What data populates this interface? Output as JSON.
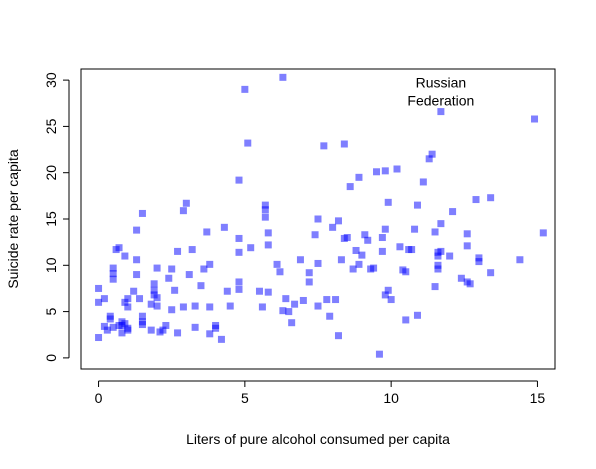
{
  "chart_data": {
    "type": "scatter",
    "title": "",
    "xlabel": "Liters of pure alcohol consumed per capita",
    "ylabel": "Suicide rate per capita",
    "xlim": [
      -0.6,
      15.6
    ],
    "ylim": [
      -1.2,
      31.2
    ],
    "xticks": [
      0,
      5,
      10,
      15
    ],
    "yticks": [
      0,
      5,
      10,
      15,
      20,
      25,
      30
    ],
    "grid": false,
    "marker_color": "#0000ff",
    "marker_opacity": 0.5,
    "annotation": {
      "lines": [
        "Russian",
        "Federation"
      ],
      "x": 11.7,
      "y": 26.6
    },
    "points": [
      [
        0.0,
        2.2
      ],
      [
        0.0,
        6.0
      ],
      [
        0.0,
        7.5
      ],
      [
        0.2,
        3.4
      ],
      [
        0.2,
        6.4
      ],
      [
        0.3,
        3.0
      ],
      [
        0.4,
        4.2
      ],
      [
        0.4,
        4.5
      ],
      [
        0.5,
        8.5
      ],
      [
        0.5,
        9.1
      ],
      [
        0.5,
        9.7
      ],
      [
        0.5,
        3.3
      ],
      [
        0.6,
        11.7
      ],
      [
        0.7,
        3.5
      ],
      [
        0.7,
        11.9
      ],
      [
        0.8,
        3.9
      ],
      [
        0.8,
        2.7
      ],
      [
        0.8,
        3.5
      ],
      [
        0.9,
        3.7
      ],
      [
        0.9,
        6.0
      ],
      [
        0.9,
        11.0
      ],
      [
        1.0,
        3.0
      ],
      [
        1.0,
        5.5
      ],
      [
        1.0,
        3.2
      ],
      [
        1.0,
        6.4
      ],
      [
        1.2,
        7.2
      ],
      [
        1.3,
        10.6
      ],
      [
        1.3,
        9.0
      ],
      [
        1.3,
        13.8
      ],
      [
        1.4,
        6.4
      ],
      [
        1.5,
        3.6
      ],
      [
        1.5,
        4.5
      ],
      [
        1.5,
        3.9
      ],
      [
        1.5,
        15.6
      ],
      [
        1.8,
        3.0
      ],
      [
        1.8,
        5.8
      ],
      [
        1.9,
        6.8
      ],
      [
        1.9,
        7.3
      ],
      [
        1.9,
        8.0
      ],
      [
        2.0,
        9.7
      ],
      [
        2.0,
        5.6
      ],
      [
        2.0,
        6.5
      ],
      [
        2.1,
        2.8
      ],
      [
        2.2,
        3.0
      ],
      [
        2.3,
        3.5
      ],
      [
        2.4,
        8.6
      ],
      [
        2.5,
        9.6
      ],
      [
        2.5,
        5.2
      ],
      [
        2.6,
        7.3
      ],
      [
        2.7,
        2.7
      ],
      [
        2.7,
        11.5
      ],
      [
        2.9,
        15.9
      ],
      [
        2.9,
        5.5
      ],
      [
        3.0,
        16.7
      ],
      [
        3.1,
        9.0
      ],
      [
        3.2,
        11.7
      ],
      [
        3.3,
        3.3
      ],
      [
        3.3,
        5.6
      ],
      [
        3.5,
        7.8
      ],
      [
        3.6,
        9.6
      ],
      [
        3.7,
        13.6
      ],
      [
        3.8,
        10.1
      ],
      [
        3.8,
        2.6
      ],
      [
        3.8,
        5.5
      ],
      [
        4.0,
        3.5
      ],
      [
        4.0,
        3.2
      ],
      [
        4.2,
        2.0
      ],
      [
        4.3,
        14.1
      ],
      [
        4.4,
        7.2
      ],
      [
        4.5,
        5.6
      ],
      [
        4.8,
        8.2
      ],
      [
        4.8,
        7.4
      ],
      [
        4.8,
        11.4
      ],
      [
        4.8,
        12.9
      ],
      [
        4.8,
        19.2
      ],
      [
        5.0,
        29.0
      ],
      [
        5.1,
        23.2
      ],
      [
        5.2,
        11.9
      ],
      [
        5.5,
        7.2
      ],
      [
        5.6,
        5.5
      ],
      [
        5.7,
        16.5
      ],
      [
        5.7,
        16.0
      ],
      [
        5.7,
        15.2
      ],
      [
        5.8,
        13.5
      ],
      [
        5.8,
        12.2
      ],
      [
        5.8,
        7.1
      ],
      [
        6.1,
        10.1
      ],
      [
        6.2,
        9.3
      ],
      [
        6.3,
        5.1
      ],
      [
        6.3,
        30.3
      ],
      [
        6.4,
        6.4
      ],
      [
        6.5,
        5.0
      ],
      [
        6.6,
        3.8
      ],
      [
        6.7,
        5.8
      ],
      [
        6.9,
        10.6
      ],
      [
        7.0,
        6.2
      ],
      [
        7.2,
        9.2
      ],
      [
        7.2,
        8.2
      ],
      [
        7.4,
        13.3
      ],
      [
        7.5,
        15.0
      ],
      [
        7.5,
        10.2
      ],
      [
        7.5,
        5.6
      ],
      [
        7.7,
        22.9
      ],
      [
        7.8,
        6.3
      ],
      [
        7.9,
        4.5
      ],
      [
        8.0,
        14.1
      ],
      [
        8.1,
        6.3
      ],
      [
        8.2,
        14.8
      ],
      [
        8.2,
        2.4
      ],
      [
        8.3,
        10.6
      ],
      [
        8.4,
        12.9
      ],
      [
        8.4,
        23.1
      ],
      [
        8.5,
        13.0
      ],
      [
        8.6,
        18.5
      ],
      [
        8.7,
        9.6
      ],
      [
        8.8,
        11.6
      ],
      [
        8.9,
        19.5
      ],
      [
        8.9,
        10.1
      ],
      [
        9.0,
        11.1
      ],
      [
        9.1,
        13.3
      ],
      [
        9.2,
        12.7
      ],
      [
        9.3,
        9.6
      ],
      [
        9.4,
        9.7
      ],
      [
        9.5,
        20.1
      ],
      [
        9.6,
        0.4
      ],
      [
        9.7,
        13.0
      ],
      [
        9.7,
        11.5
      ],
      [
        9.8,
        6.8
      ],
      [
        9.8,
        13.9
      ],
      [
        9.8,
        20.2
      ],
      [
        9.9,
        16.8
      ],
      [
        9.9,
        7.3
      ],
      [
        10.0,
        6.3
      ],
      [
        10.2,
        20.4
      ],
      [
        10.3,
        12.0
      ],
      [
        10.4,
        9.5
      ],
      [
        10.5,
        4.1
      ],
      [
        10.5,
        9.3
      ],
      [
        10.6,
        11.7
      ],
      [
        10.7,
        11.7
      ],
      [
        10.8,
        13.9
      ],
      [
        10.9,
        4.6
      ],
      [
        10.9,
        16.5
      ],
      [
        11.1,
        19.0
      ],
      [
        11.3,
        21.5
      ],
      [
        11.4,
        22.0
      ],
      [
        11.5,
        13.6
      ],
      [
        11.5,
        7.7
      ],
      [
        11.6,
        11.4
      ],
      [
        11.6,
        10.0
      ],
      [
        11.6,
        9.6
      ],
      [
        11.6,
        11.0
      ],
      [
        11.7,
        14.5
      ],
      [
        11.7,
        11.5
      ],
      [
        11.7,
        26.6
      ],
      [
        12.0,
        11.0
      ],
      [
        12.1,
        15.8
      ],
      [
        12.4,
        8.6
      ],
      [
        12.6,
        12.1
      ],
      [
        12.6,
        13.4
      ],
      [
        12.6,
        8.2
      ],
      [
        12.7,
        8.0
      ],
      [
        12.9,
        17.1
      ],
      [
        13.0,
        10.8
      ],
      [
        13.0,
        10.4
      ],
      [
        13.4,
        9.2
      ],
      [
        13.4,
        17.3
      ],
      [
        14.4,
        10.6
      ],
      [
        14.9,
        25.8
      ],
      [
        15.2,
        13.5
      ]
    ]
  }
}
